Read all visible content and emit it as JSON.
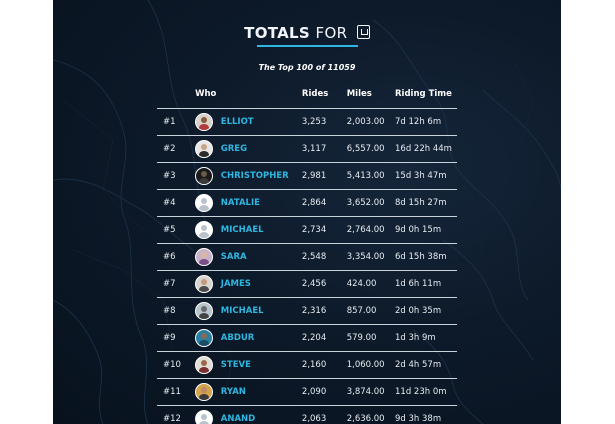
{
  "header": {
    "title_bold": "TOTALS",
    "title_light": "FOR",
    "brand_icon": "uber-logo-icon",
    "accent_color": "#2fb6e0",
    "subtitle": "The Top 100 of 11059"
  },
  "table": {
    "columns": [
      "",
      "Who",
      "",
      "Rides",
      "Miles",
      "Riding Time"
    ],
    "rows": [
      {
        "rank": "#1",
        "name": "ELLIOT",
        "rides": "3,253",
        "miles": "2,003.00",
        "time": "7d 12h 6m",
        "avatar": {
          "bg": "#d8d2cc",
          "head": "#8b5a3c",
          "body": "#b23a3a"
        }
      },
      {
        "rank": "#2",
        "name": "GREG",
        "rides": "3,117",
        "miles": "6,557.00",
        "time": "16d 22h 44m",
        "avatar": {
          "bg": "#e6e6e6",
          "head": "#c9a586",
          "body": "#2b2b2b"
        }
      },
      {
        "rank": "#3",
        "name": "CHRISTOPHER",
        "rides": "2,981",
        "miles": "5,413.00",
        "time": "15d 3h 47m",
        "avatar": {
          "bg": "#1a1a1a",
          "head": "#6a5a4a",
          "body": "#3a3a3a"
        }
      },
      {
        "rank": "#4",
        "name": "NATALIE",
        "rides": "2,864",
        "miles": "3,652.00",
        "time": "8d 15h 27m",
        "avatar": {
          "bg": "#ffffff",
          "head": "#b9c3cc",
          "body": "#b9c3cc"
        }
      },
      {
        "rank": "#5",
        "name": "MICHAEL",
        "rides": "2,734",
        "miles": "2,764.00",
        "time": "9d 0h 15m",
        "avatar": {
          "bg": "#ffffff",
          "head": "#b9c3cc",
          "body": "#b9c3cc"
        }
      },
      {
        "rank": "#6",
        "name": "SARA",
        "rides": "2,548",
        "miles": "3,354.00",
        "time": "6d 15h 38m",
        "avatar": {
          "bg": "#c7b3c9",
          "head": "#d9b7a0",
          "body": "#7a4f8a"
        }
      },
      {
        "rank": "#7",
        "name": "JAMES",
        "rides": "2,456",
        "miles": "424.00",
        "time": "1d 6h 11m",
        "avatar": {
          "bg": "#d9d4cf",
          "head": "#c49a7c",
          "body": "#4a4a4a"
        }
      },
      {
        "rank": "#8",
        "name": "MICHAEL",
        "rides": "2,316",
        "miles": "857.00",
        "time": "2d 0h 35m",
        "avatar": {
          "bg": "#b8c4cc",
          "head": "#6b6b6b",
          "body": "#444444"
        }
      },
      {
        "rank": "#9",
        "name": "ABDUR",
        "rides": "2,204",
        "miles": "579.00",
        "time": "1d 3h 9m",
        "avatar": {
          "bg": "#2a7fa0",
          "head": "#8a6a52",
          "body": "#1d4d66"
        }
      },
      {
        "rank": "#10",
        "name": "STEVE",
        "rides": "2,160",
        "miles": "1,060.00",
        "time": "2d 4h 57m",
        "avatar": {
          "bg": "#e3ddd7",
          "head": "#9a6a4a",
          "body": "#7a2e2e"
        }
      },
      {
        "rank": "#11",
        "name": "RYAN",
        "rides": "2,090",
        "miles": "3,874.00",
        "time": "11d 23h 0m",
        "avatar": {
          "bg": "#d4a24a",
          "head": "#c08a66",
          "body": "#3a3a3a"
        }
      },
      {
        "rank": "#12",
        "name": "ANAND",
        "rides": "2,063",
        "miles": "2,636.00",
        "time": "9d 3h 38m",
        "avatar": {
          "bg": "#ffffff",
          "head": "#b9c3cc",
          "body": "#b9c3cc"
        }
      }
    ]
  }
}
